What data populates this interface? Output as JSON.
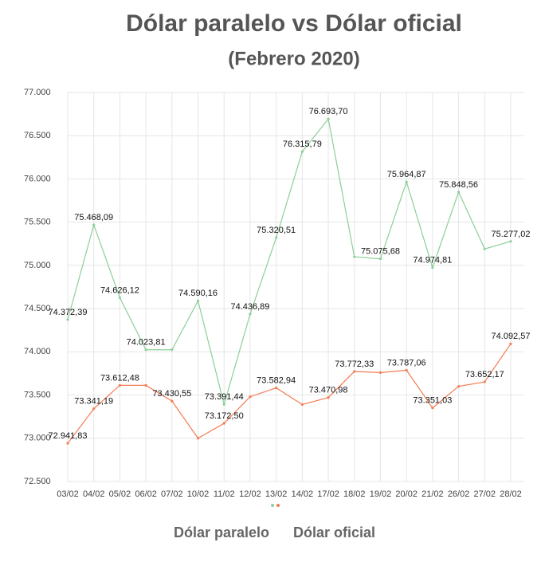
{
  "chart_data": {
    "type": "line",
    "title": "Dólar paralelo vs Dólar oficial",
    "subtitle": "(Febrero 2020)",
    "categories": [
      "03/02",
      "04/02",
      "05/02",
      "06/02",
      "07/02",
      "10/02",
      "11/02",
      "12/02",
      "13/02",
      "14/02",
      "17/02",
      "18/02",
      "19/02",
      "20/02",
      "21/02",
      "26/02",
      "27/02",
      "28/02"
    ],
    "series": [
      {
        "name": "Dólar paralelo",
        "color": "#8ccf98",
        "values": [
          74372.39,
          75468.09,
          74626.12,
          74023.81,
          74023.81,
          74590.16,
          73391.44,
          74436.89,
          75320.51,
          76315.79,
          76693.7,
          75100,
          75075.68,
          75964.87,
          74974.81,
          75848.56,
          75190,
          75277.02
        ],
        "value_labels": [
          "74.372,39",
          "75.468,09",
          "74.626,12",
          "74.023,81",
          null,
          "74.590,16",
          "73.391,44",
          "74.436,89",
          "75.320,51",
          "76.315,79",
          "76.693,70",
          null,
          "75.075,68",
          "75.964,87",
          "74.974,81",
          "75.848,56",
          null,
          "75.277,02"
        ]
      },
      {
        "name": "Dólar oficial",
        "color": "#f47c55",
        "values": [
          72941.83,
          73341.19,
          73612.48,
          73612,
          73430.55,
          73000,
          73172.5,
          73480,
          73582.94,
          73390,
          73470.98,
          73772.33,
          73760,
          73787.06,
          73351.03,
          73600,
          73652.17,
          74092.57
        ],
        "value_labels": [
          "72.941,83",
          "73.341,19",
          "73.612,48",
          null,
          "73.430,55",
          null,
          "73.172,50",
          null,
          "73.582,94",
          null,
          "73.470,98",
          "73.772,33",
          null,
          "73.787,06",
          "73.351,03",
          null,
          "73.652,17",
          "74.092,57"
        ]
      }
    ],
    "ylim": [
      72500,
      77000
    ],
    "yticks": [
      {
        "value": 72500,
        "label": "72.500"
      },
      {
        "value": 73000,
        "label": "73.000"
      },
      {
        "value": 73500,
        "label": "73.500"
      },
      {
        "value": 74000,
        "label": "74.000"
      },
      {
        "value": 74500,
        "label": "74.500"
      },
      {
        "value": 75000,
        "label": "75.000"
      },
      {
        "value": 75500,
        "label": "75.500"
      },
      {
        "value": 76000,
        "label": "76.000"
      },
      {
        "value": 76500,
        "label": "76.500"
      },
      {
        "value": 77000,
        "label": "77.000"
      }
    ],
    "grid": true
  }
}
